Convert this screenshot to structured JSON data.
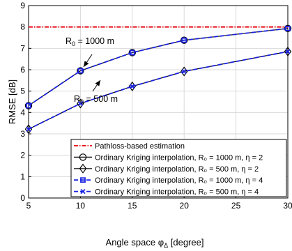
{
  "chart_data": {
    "type": "line",
    "title": "",
    "xlabel": "Angle space φ",
    "xlabel_subscript": "Δ",
    "xlabel_suffix": " [degree]",
    "ylabel": "RMSE [dB]",
    "xlim": [
      5,
      30
    ],
    "ylim": [
      0,
      9
    ],
    "xticks": [
      5,
      10,
      15,
      20,
      25,
      30
    ],
    "yticks": [
      0,
      1,
      2,
      3,
      4,
      5,
      6,
      7,
      8,
      9
    ],
    "grid": true,
    "legend_position": "lower-right",
    "x": [
      5,
      10,
      15,
      20,
      30
    ],
    "series": [
      {
        "name": "Pathloss-based estimation",
        "color": "#e8000b",
        "dash": "dashdot",
        "marker": "none",
        "values": [
          8.0,
          8.0,
          8.0,
          8.0,
          8.0
        ]
      },
      {
        "name": "Ordinary Kriging interpolation, R₀ = 1000 m, η = 2",
        "color": "#000000",
        "dash": "solid",
        "marker": "circle",
        "values": [
          4.32,
          5.95,
          6.8,
          7.38,
          7.93
        ]
      },
      {
        "name": "Ordinary Kriging interpolation, R₀ = 500 m, η = 2",
        "color": "#000000",
        "dash": "solid",
        "marker": "diamond",
        "values": [
          3.22,
          4.42,
          5.22,
          5.92,
          6.85
        ]
      },
      {
        "name": "Ordinary Kriging interpolation, R₀ = 1000 m, η = 4",
        "color": "#1a22e0",
        "dash": "dashed",
        "marker": "square",
        "values": [
          4.32,
          5.95,
          6.8,
          7.38,
          7.93
        ]
      },
      {
        "name": "Ordinary Kriging interpolation, R₀ = 500 m, η = 4",
        "color": "#1a22e0",
        "dash": "dashed",
        "marker": "x",
        "values": [
          3.22,
          4.42,
          5.22,
          5.92,
          6.85
        ]
      }
    ],
    "annotations": [
      {
        "id": "ann1000",
        "prefix": "R",
        "sub": "0",
        "suffix": " = 1000 m"
      },
      {
        "id": "ann500",
        "prefix": "R",
        "sub": "0",
        "suffix": " = 500 m"
      }
    ]
  }
}
